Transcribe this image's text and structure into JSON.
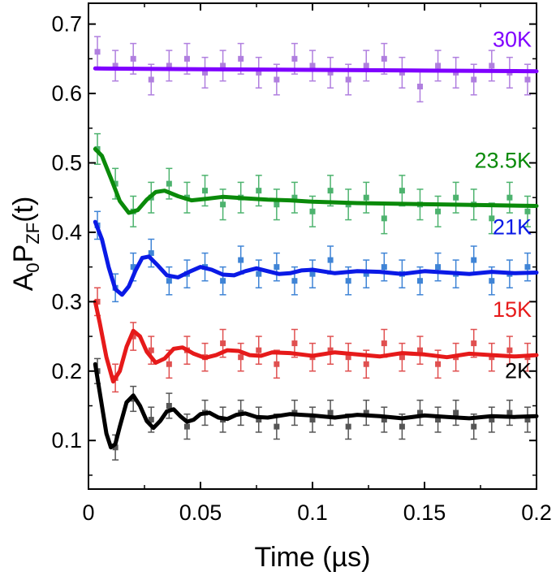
{
  "chart_data": {
    "type": "line",
    "title": "",
    "xlabel": "Time (µs)",
    "ylabel": {
      "main": "A",
      "sub0": "0",
      "main2": "P",
      "sub1": "ZF",
      "tail": "(t)"
    },
    "xlim": [
      0,
      0.2
    ],
    "ylim": [
      0.03,
      0.73
    ],
    "xticks": [
      0,
      0.05,
      0.1,
      0.15,
      0.2
    ],
    "xtick_labels": [
      "0",
      "0.05",
      "0.1",
      "0.15",
      "0.2"
    ],
    "yticks": [
      0.1,
      0.2,
      0.3,
      0.4,
      0.5,
      0.6,
      0.7
    ],
    "ytick_labels": [
      "0.1",
      "0.2",
      "0.3",
      "0.4",
      "0.5",
      "0.6",
      "0.7"
    ],
    "grid": false,
    "legend": "inline labels at right",
    "series": [
      {
        "name": "30K",
        "fit_color": "#7f00ff",
        "data_color": "#b07fdf",
        "fit_x": [
          0.003,
          0.05,
          0.1,
          0.15,
          0.2
        ],
        "fit_y": [
          0.636,
          0.635,
          0.634,
          0.633,
          0.632
        ],
        "points": {
          "x": [
            0.004,
            0.012,
            0.02,
            0.028,
            0.036,
            0.044,
            0.052,
            0.06,
            0.068,
            0.076,
            0.084,
            0.092,
            0.1,
            0.108,
            0.116,
            0.124,
            0.132,
            0.14,
            0.148,
            0.156,
            0.164,
            0.172,
            0.18,
            0.188,
            0.196
          ],
          "y": [
            0.66,
            0.64,
            0.65,
            0.62,
            0.64,
            0.65,
            0.63,
            0.64,
            0.65,
            0.63,
            0.62,
            0.65,
            0.64,
            0.63,
            0.62,
            0.64,
            0.65,
            0.63,
            0.61,
            0.64,
            0.63,
            0.62,
            0.64,
            0.63,
            0.62
          ],
          "err": 0.022
        }
      },
      {
        "name": "23.5K",
        "fit_color": "#0a8a0a",
        "data_color": "#4db36e",
        "fit_x": [
          0.003,
          0.006,
          0.01,
          0.014,
          0.018,
          0.022,
          0.026,
          0.03,
          0.034,
          0.04,
          0.046,
          0.052,
          0.06,
          0.07,
          0.08,
          0.09,
          0.1,
          0.12,
          0.14,
          0.16,
          0.18,
          0.2
        ],
        "fit_y": [
          0.52,
          0.51,
          0.478,
          0.445,
          0.428,
          0.432,
          0.447,
          0.458,
          0.46,
          0.452,
          0.446,
          0.448,
          0.451,
          0.449,
          0.447,
          0.446,
          0.444,
          0.442,
          0.441,
          0.44,
          0.439,
          0.438
        ],
        "points": {
          "x": [
            0.004,
            0.012,
            0.02,
            0.028,
            0.036,
            0.044,
            0.052,
            0.06,
            0.068,
            0.076,
            0.084,
            0.092,
            0.1,
            0.108,
            0.116,
            0.124,
            0.132,
            0.14,
            0.148,
            0.156,
            0.164,
            0.172,
            0.18,
            0.188,
            0.196
          ],
          "y": [
            0.52,
            0.47,
            0.43,
            0.45,
            0.47,
            0.45,
            0.46,
            0.44,
            0.45,
            0.46,
            0.44,
            0.45,
            0.43,
            0.46,
            0.44,
            0.45,
            0.42,
            0.46,
            0.44,
            0.43,
            0.45,
            0.44,
            0.42,
            0.45,
            0.43
          ],
          "err": 0.022
        }
      },
      {
        "name": "21K",
        "fit_color": "#0a1ae6",
        "data_color": "#3f84d6",
        "fit_x": [
          0.003,
          0.006,
          0.009,
          0.012,
          0.015,
          0.018,
          0.021,
          0.024,
          0.027,
          0.031,
          0.035,
          0.04,
          0.045,
          0.05,
          0.055,
          0.06,
          0.065,
          0.07,
          0.075,
          0.08,
          0.085,
          0.09,
          0.095,
          0.1,
          0.11,
          0.12,
          0.13,
          0.14,
          0.15,
          0.16,
          0.17,
          0.18,
          0.19,
          0.2
        ],
        "fit_y": [
          0.415,
          0.39,
          0.35,
          0.318,
          0.31,
          0.322,
          0.345,
          0.363,
          0.365,
          0.352,
          0.338,
          0.335,
          0.343,
          0.35,
          0.346,
          0.339,
          0.338,
          0.344,
          0.348,
          0.344,
          0.34,
          0.341,
          0.345,
          0.346,
          0.341,
          0.344,
          0.343,
          0.34,
          0.344,
          0.342,
          0.34,
          0.343,
          0.341,
          0.342
        ],
        "points": {
          "x": [
            0.004,
            0.012,
            0.02,
            0.028,
            0.036,
            0.044,
            0.052,
            0.06,
            0.068,
            0.076,
            0.084,
            0.092,
            0.1,
            0.108,
            0.116,
            0.124,
            0.132,
            0.14,
            0.148,
            0.156,
            0.164,
            0.172,
            0.18,
            0.188,
            0.196
          ],
          "y": [
            0.41,
            0.32,
            0.35,
            0.37,
            0.33,
            0.34,
            0.35,
            0.33,
            0.36,
            0.34,
            0.35,
            0.33,
            0.34,
            0.36,
            0.33,
            0.34,
            0.35,
            0.34,
            0.33,
            0.35,
            0.34,
            0.36,
            0.33,
            0.34,
            0.35
          ],
          "err": 0.02
        }
      },
      {
        "name": "15K",
        "fit_color": "#e61a1a",
        "data_color": "#e05050",
        "fit_x": [
          0.003,
          0.005,
          0.008,
          0.011,
          0.014,
          0.017,
          0.02,
          0.023,
          0.026,
          0.03,
          0.034,
          0.038,
          0.042,
          0.047,
          0.052,
          0.057,
          0.062,
          0.067,
          0.072,
          0.077,
          0.082,
          0.09,
          0.1,
          0.11,
          0.12,
          0.13,
          0.14,
          0.15,
          0.16,
          0.17,
          0.18,
          0.19,
          0.2
        ],
        "fit_y": [
          0.3,
          0.27,
          0.22,
          0.185,
          0.2,
          0.235,
          0.258,
          0.25,
          0.228,
          0.212,
          0.218,
          0.232,
          0.234,
          0.225,
          0.219,
          0.223,
          0.23,
          0.229,
          0.223,
          0.222,
          0.227,
          0.226,
          0.222,
          0.227,
          0.224,
          0.221,
          0.226,
          0.224,
          0.22,
          0.225,
          0.223,
          0.221,
          0.223
        ],
        "points": {
          "x": [
            0.004,
            0.012,
            0.02,
            0.028,
            0.036,
            0.044,
            0.052,
            0.06,
            0.068,
            0.076,
            0.084,
            0.092,
            0.1,
            0.108,
            0.116,
            0.124,
            0.132,
            0.14,
            0.148,
            0.156,
            0.164,
            0.172,
            0.18,
            0.188,
            0.196
          ],
          "y": [
            0.3,
            0.19,
            0.25,
            0.23,
            0.21,
            0.23,
            0.22,
            0.24,
            0.22,
            0.23,
            0.21,
            0.24,
            0.22,
            0.23,
            0.22,
            0.21,
            0.24,
            0.22,
            0.23,
            0.21,
            0.22,
            0.24,
            0.22,
            0.23,
            0.22
          ],
          "err": 0.02
        }
      },
      {
        "name": "2K",
        "fit_color": "#000000",
        "data_color": "#555555",
        "fit_x": [
          0.003,
          0.005,
          0.008,
          0.01,
          0.012,
          0.014,
          0.017,
          0.02,
          0.023,
          0.026,
          0.029,
          0.032,
          0.035,
          0.038,
          0.041,
          0.044,
          0.047,
          0.05,
          0.054,
          0.058,
          0.062,
          0.066,
          0.07,
          0.075,
          0.08,
          0.09,
          0.1,
          0.11,
          0.12,
          0.13,
          0.14,
          0.15,
          0.16,
          0.17,
          0.18,
          0.19,
          0.2
        ],
        "fit_y": [
          0.21,
          0.17,
          0.11,
          0.09,
          0.095,
          0.12,
          0.155,
          0.165,
          0.15,
          0.128,
          0.118,
          0.128,
          0.142,
          0.145,
          0.135,
          0.127,
          0.13,
          0.138,
          0.14,
          0.133,
          0.131,
          0.137,
          0.139,
          0.134,
          0.133,
          0.138,
          0.136,
          0.133,
          0.137,
          0.135,
          0.132,
          0.136,
          0.134,
          0.132,
          0.135,
          0.134,
          0.135
        ],
        "points": {
          "x": [
            0.004,
            0.012,
            0.02,
            0.028,
            0.036,
            0.044,
            0.052,
            0.06,
            0.068,
            0.076,
            0.084,
            0.092,
            0.1,
            0.108,
            0.116,
            0.124,
            0.132,
            0.14,
            0.148,
            0.156,
            0.164,
            0.172,
            0.18,
            0.188,
            0.196
          ],
          "y": [
            0.2,
            0.09,
            0.16,
            0.13,
            0.15,
            0.12,
            0.14,
            0.13,
            0.14,
            0.13,
            0.12,
            0.14,
            0.13,
            0.14,
            0.12,
            0.14,
            0.13,
            0.12,
            0.14,
            0.13,
            0.14,
            0.12,
            0.13,
            0.14,
            0.13
          ],
          "err": 0.018
        }
      }
    ]
  }
}
